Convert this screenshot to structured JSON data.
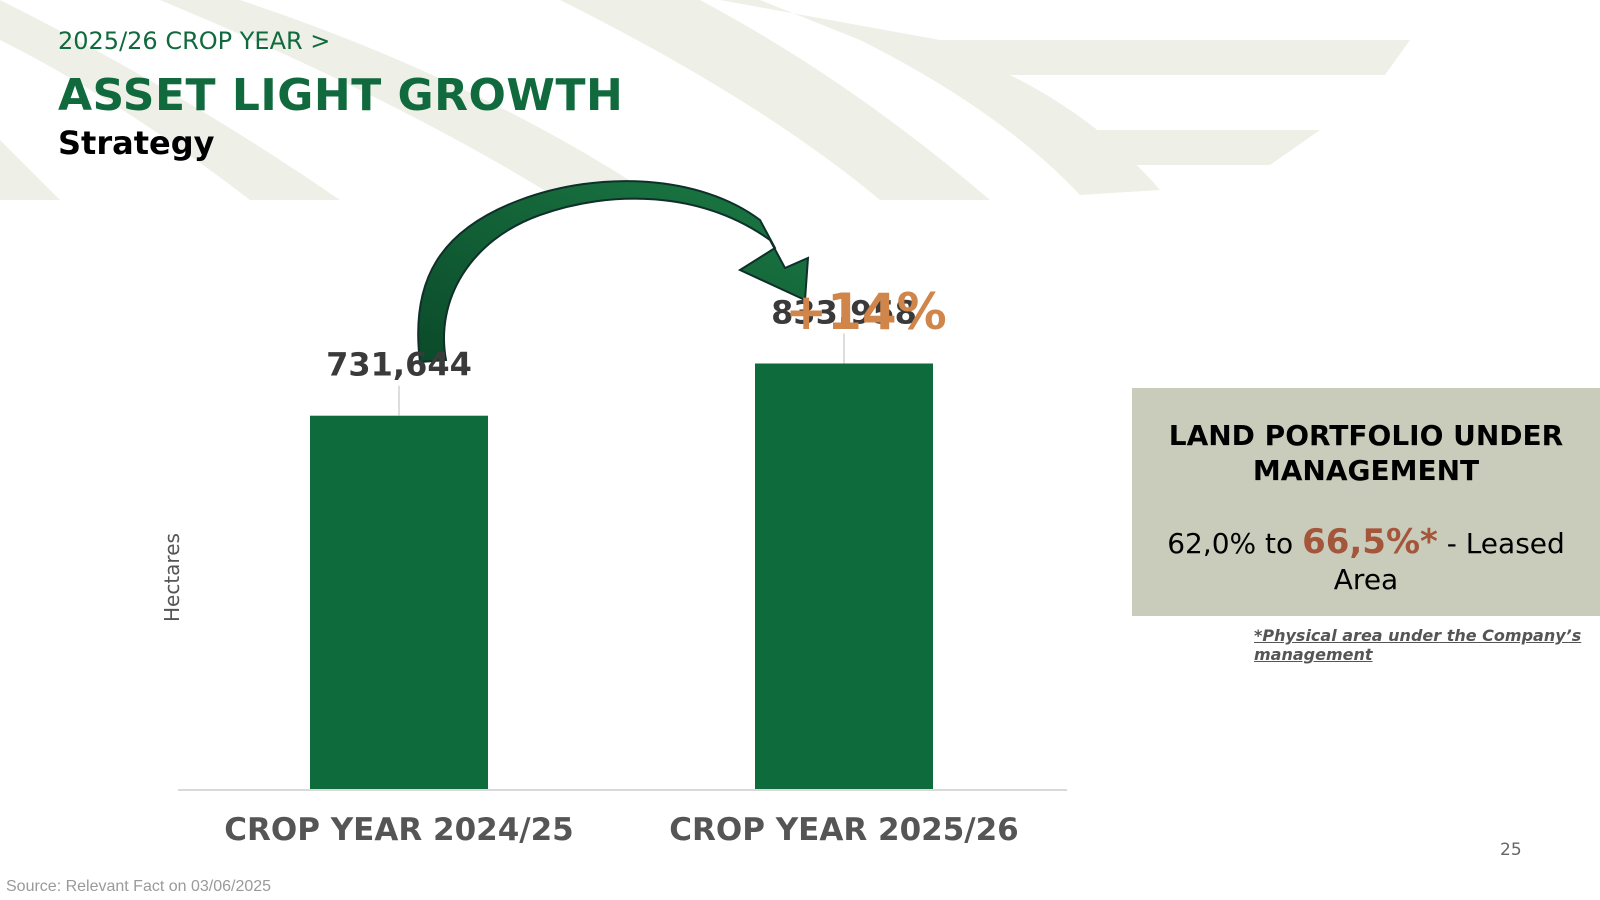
{
  "header": {
    "breadcrumb": "2025/26 CROP YEAR >",
    "title": "ASSET LIGHT GROWTH",
    "subtitle": "Strategy"
  },
  "chart_data": {
    "type": "bar",
    "categories": [
      "CROP YEAR 2024/25",
      "CROP YEAR 2025/26"
    ],
    "values": [
      731644,
      833958
    ],
    "value_labels": [
      "731,644",
      "833,958"
    ],
    "ylabel": "Hectares",
    "ylim": [
      0,
      880000
    ],
    "grid": false,
    "annotation": "+14%",
    "bar_color": "#0e6b3c"
  },
  "info_box": {
    "title": "LAND PORTFOLIO UNDER MANAGEMENT",
    "text_before": "62,0% to ",
    "highlight": "66,5%*",
    "text_after": " - Leased Area"
  },
  "footnote": "*Physical area under the Company’s management",
  "page_number": "25",
  "source": "Source: Relevant Fact on 03/06/2025",
  "colors": {
    "brand_green": "#106a3d",
    "bar_green": "#0e6b3c",
    "annotation_orange": "#d0864a",
    "info_box_bg": "#c9cbbb",
    "highlight_rust": "#a4563a"
  }
}
